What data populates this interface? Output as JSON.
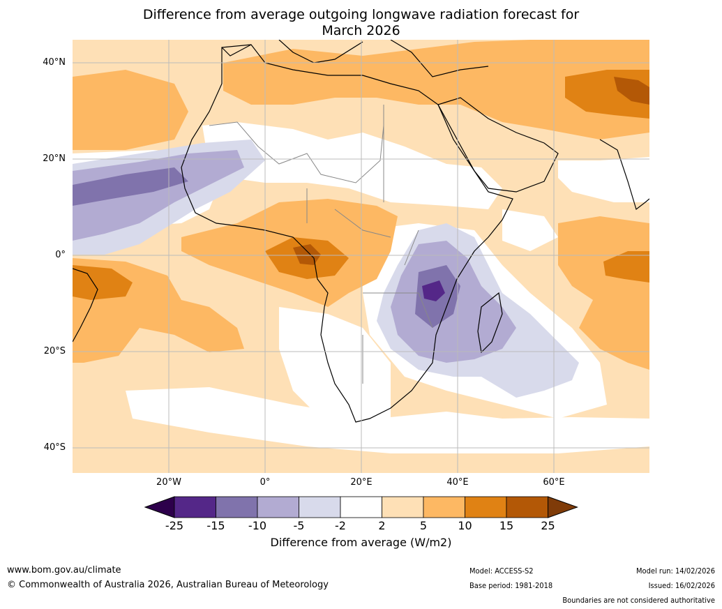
{
  "title": {
    "line1": "Difference from average outgoing longwave radiation forecast for",
    "line2": "March 2026"
  },
  "map": {
    "lat_labels": [
      "40°N",
      "20°N",
      "0°",
      "20°S",
      "40°S"
    ],
    "lon_labels": [
      "20°W",
      "0°",
      "20°E",
      "40°E",
      "60°E"
    ]
  },
  "colorbar": {
    "title": "Difference from average (W/m2)",
    "tick_labels": [
      "-25",
      "-15",
      "-10",
      "-5",
      "-2",
      "2",
      "5",
      "10",
      "15",
      "25"
    ],
    "colors": [
      "#2d004b",
      "#542788",
      "#8073ac",
      "#b2abd2",
      "#d8daeb",
      "#ffffff",
      "#fee0b6",
      "#fdb863",
      "#e08214",
      "#b35806",
      "#7f3b08"
    ]
  },
  "footer": {
    "website": "www.bom.gov.au/climate",
    "copyright": "© Commonwealth of Australia 2026, Australian Bureau of Meteorology",
    "model": "Model: ACCESS-S2",
    "base_period": "Base period: 1981-2018",
    "model_run": "Model run: 14/02/2026",
    "issued": "Issued: 16/02/2026",
    "disclaimer": "Boundaries are not considered authoritative"
  }
}
